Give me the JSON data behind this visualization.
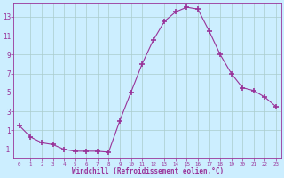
{
  "x": [
    0,
    1,
    2,
    3,
    4,
    5,
    6,
    7,
    8,
    9,
    10,
    11,
    12,
    13,
    14,
    15,
    16,
    17,
    18,
    19,
    20,
    21,
    22,
    23
  ],
  "y": [
    1.5,
    0.3,
    -0.3,
    -0.5,
    -1.0,
    -1.2,
    -1.2,
    -1.2,
    -1.3,
    2.0,
    5.0,
    8.0,
    10.5,
    12.5,
    13.5,
    14.0,
    13.8,
    11.5,
    9.0,
    7.0,
    5.5,
    5.2,
    4.5,
    3.5
  ],
  "line_color": "#993399",
  "marker_color": "#993399",
  "bg_color": "#cceeff",
  "grid_color": "#aacccc",
  "xlabel": "Windchill (Refroidissement éolien,°C)",
  "xlabel_color": "#993399",
  "tick_color": "#993399",
  "ylim": [
    -2,
    14.5
  ],
  "yticks": [
    -1,
    1,
    3,
    5,
    7,
    9,
    11,
    13
  ],
  "xlim": [
    -0.5,
    23.5
  ],
  "xticks": [
    0,
    1,
    2,
    3,
    4,
    5,
    6,
    7,
    8,
    9,
    10,
    11,
    12,
    13,
    14,
    15,
    16,
    17,
    18,
    19,
    20,
    21,
    22,
    23
  ]
}
